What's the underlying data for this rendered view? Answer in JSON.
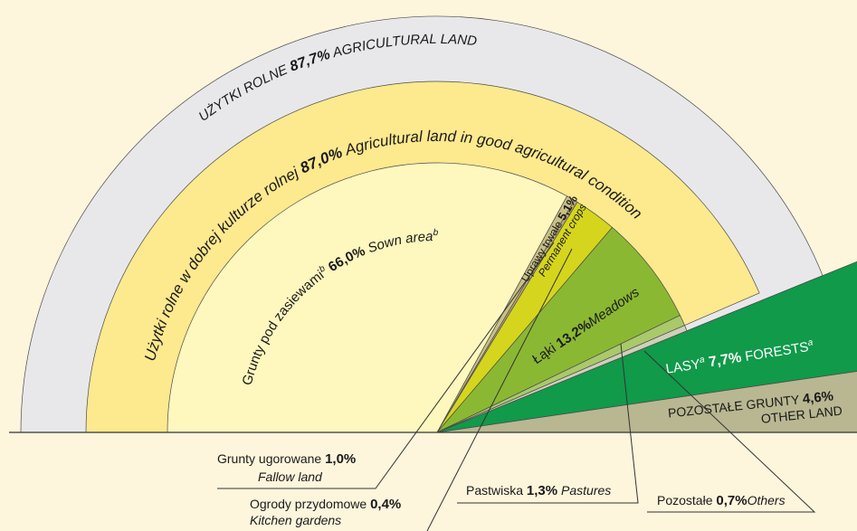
{
  "chart_data": {
    "type": "pie",
    "rings": [
      {
        "segments": [
          {
            "name": "UŻYTKI ROLNE",
            "name_en": "AGRICULTURAL LAND",
            "value": 87.7,
            "value_label": "87,7%",
            "color": "#e8e8ea"
          },
          {
            "name": "LASY",
            "note": "a",
            "name_en": "FORESTS",
            "value": 7.7,
            "value_label": "7,7%",
            "color": "#109a4a"
          },
          {
            "name": "POZOSTAŁE GRUNTY",
            "name_en": "OTHER LAND",
            "value": 4.6,
            "value_label": "4,6%",
            "color": "#b8b791"
          }
        ]
      },
      {
        "segments": [
          {
            "name": "Użytki rolne w dobrej kulturze rolnej",
            "name_en": "Agricultural land in good agricultural condition",
            "value": 87.0,
            "value_label": "87,0%",
            "color": "#fde98e"
          }
        ]
      },
      {
        "segments": [
          {
            "name": "Grunty pod zasiewami",
            "note": "b",
            "name_en": "Sown area",
            "value": 66.0,
            "value_label": "66,0%",
            "color": "#fef7be"
          },
          {
            "name": "Grunty ugorowane",
            "name_en": "Fallow land",
            "value": 1.0,
            "value_label": "1,0%",
            "color": "#c9bf86"
          },
          {
            "name": "Ogrody przydomowe",
            "name_en": "Kitchen gardens",
            "value": 0.4,
            "value_label": "0,4%",
            "color": "#b7aa72"
          },
          {
            "name": "Uprawy trwałe",
            "name_en": "Permanent crops",
            "value": 5.1,
            "value_label": "5,1%",
            "color": "#d5d51d"
          },
          {
            "name": "Łąki",
            "name_en": "Meadows",
            "value": 13.2,
            "value_label": "13,2%",
            "color": "#8bb833"
          },
          {
            "name": "Pastwiska",
            "name_en": "Pastures",
            "value": 1.3,
            "value_label": "1,3%",
            "color": "#a9c96b"
          },
          {
            "name": "Pozostałe",
            "name_en": "Others",
            "value": 0.7,
            "value_label": "0,7%",
            "color": "#cfd0b8"
          }
        ]
      }
    ]
  }
}
